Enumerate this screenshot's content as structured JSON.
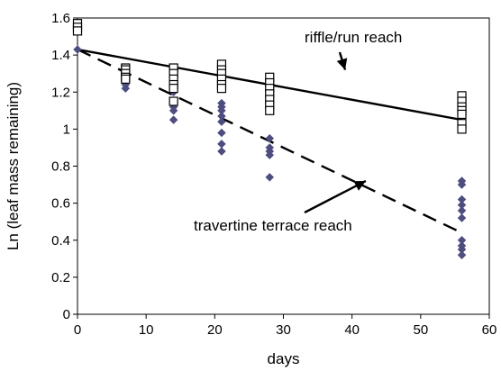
{
  "chart_data": {
    "type": "scatter",
    "title": "",
    "xlabel": "days",
    "ylabel": "Ln (leaf mass remaining)",
    "xlim": [
      0,
      60
    ],
    "ylim": [
      0,
      1.6
    ],
    "xticks": [
      "0",
      "10",
      "20",
      "30",
      "40",
      "50",
      "60"
    ],
    "yticks": [
      "0",
      "0.2",
      "0.4",
      "0.6",
      "0.8",
      "1",
      "1.2",
      "1.4",
      "1.6"
    ],
    "grid": false,
    "legend": "none",
    "series": [
      {
        "marker": "open-square",
        "color": "#000000",
        "points": [
          [
            0,
            1.57
          ],
          [
            0,
            1.55
          ],
          [
            0,
            1.53
          ],
          [
            7,
            1.33
          ],
          [
            7,
            1.32
          ],
          [
            7,
            1.3
          ],
          [
            7,
            1.28
          ],
          [
            7,
            1.27
          ],
          [
            14,
            1.33
          ],
          [
            14,
            1.3
          ],
          [
            14,
            1.27
          ],
          [
            14,
            1.24
          ],
          [
            14,
            1.22
          ],
          [
            14,
            1.15
          ],
          [
            21,
            1.35
          ],
          [
            21,
            1.32
          ],
          [
            21,
            1.3
          ],
          [
            21,
            1.27
          ],
          [
            21,
            1.24
          ],
          [
            21,
            1.22
          ],
          [
            28,
            1.28
          ],
          [
            28,
            1.25
          ],
          [
            28,
            1.22
          ],
          [
            28,
            1.19
          ],
          [
            28,
            1.16
          ],
          [
            28,
            1.13
          ],
          [
            28,
            1.1
          ],
          [
            56,
            1.18
          ],
          [
            56,
            1.15
          ],
          [
            56,
            1.12
          ],
          [
            56,
            1.1
          ],
          [
            56,
            1.08
          ],
          [
            56,
            1.03
          ],
          [
            56,
            1.0
          ]
        ]
      },
      {
        "marker": "filled-diamond",
        "color": "#4d4d80",
        "points": [
          [
            0,
            1.43
          ],
          [
            7,
            1.26
          ],
          [
            7,
            1.24
          ],
          [
            7,
            1.22
          ],
          [
            14,
            1.2
          ],
          [
            14,
            1.14
          ],
          [
            14,
            1.12
          ],
          [
            14,
            1.1
          ],
          [
            14,
            1.05
          ],
          [
            21,
            1.14
          ],
          [
            21,
            1.12
          ],
          [
            21,
            1.1
          ],
          [
            21,
            1.07
          ],
          [
            21,
            1.04
          ],
          [
            21,
            0.98
          ],
          [
            21,
            0.92
          ],
          [
            21,
            0.88
          ],
          [
            28,
            0.95
          ],
          [
            28,
            0.9
          ],
          [
            28,
            0.88
          ],
          [
            28,
            0.86
          ],
          [
            28,
            0.74
          ],
          [
            56,
            0.72
          ],
          [
            56,
            0.7
          ],
          [
            56,
            0.62
          ],
          [
            56,
            0.59
          ],
          [
            56,
            0.56
          ],
          [
            56,
            0.52
          ],
          [
            56,
            0.4
          ],
          [
            56,
            0.37
          ],
          [
            56,
            0.35
          ],
          [
            56,
            0.32
          ]
        ]
      }
    ],
    "trendlines": [
      {
        "style": "solid",
        "from": [
          0,
          1.43
        ],
        "to": [
          56,
          1.05
        ]
      },
      {
        "style": "dashed",
        "from": [
          0,
          1.43
        ],
        "to": [
          56,
          0.44
        ]
      }
    ],
    "annotations": [
      {
        "text": "riffle/run reach",
        "arrow_to": [
          39,
          1.32
        ]
      },
      {
        "text": "travertine terrace reach",
        "arrow_to": [
          42,
          0.72
        ]
      }
    ]
  }
}
